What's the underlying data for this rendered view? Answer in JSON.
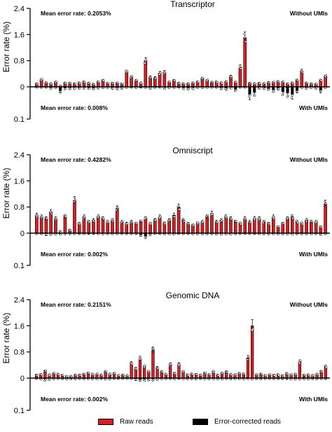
{
  "colors": {
    "raw": "#d31f26",
    "corrected": "#000000",
    "axis": "#000000",
    "point": "#ffffff"
  },
  "legend": {
    "raw_label": "Raw reads",
    "corrected_label": "Error-corrected reads"
  },
  "chart_data": [
    {
      "type": "bar",
      "title": "Transcriptor",
      "ylabel": "Error rate (%)",
      "yticks_top": [
        "2.4",
        "1.6",
        "0.8",
        "0"
      ],
      "ytick_bottom": "0.1",
      "ylim_top": [
        0,
        2.4
      ],
      "ylim_bottom": [
        0,
        0.1
      ],
      "grid": false,
      "annotations": {
        "mean_raw": "Mean error rate: 0.2053%",
        "without_umis": "Without UMIs",
        "mean_corrected": "Mean error rate: 0.008%",
        "with_umis": "With UMIs"
      },
      "series": [
        {
          "name": "Raw reads",
          "values": [
            0.1,
            0.22,
            0.13,
            0.1,
            0.15,
            0.02,
            0.12,
            0.12,
            0.1,
            0.12,
            0.15,
            0.12,
            0.08,
            0.15,
            0.2,
            0.1,
            0.12,
            0.12,
            0.1,
            0.45,
            0.3,
            0.2,
            0.12,
            0.8,
            0.3,
            0.28,
            0.42,
            0.45,
            0.15,
            0.2,
            0.12,
            0.1,
            0.1,
            0.12,
            0.15,
            0.25,
            0.2,
            0.14,
            0.15,
            0.12,
            0.16,
            0.32,
            0.15,
            0.6,
            1.5,
            0.12,
            0.1,
            0.12,
            0.1,
            0.14,
            0.14,
            0.16,
            0.15,
            0.1,
            0.12,
            0.2,
            0.48,
            0.12,
            0.1,
            0.08,
            0.2,
            0.32
          ]
        },
        {
          "name": "Error-corrected reads",
          "values": [
            0,
            0,
            0,
            0.003,
            0,
            0.012,
            0.004,
            0.004,
            0.003,
            0.003,
            0.003,
            0.003,
            0.005,
            0.003,
            0,
            0,
            0.004,
            0.004,
            0.003,
            0,
            0,
            0,
            0,
            0,
            0.003,
            0,
            0,
            0.003,
            0,
            0,
            0,
            0.003,
            0.004,
            0.003,
            0,
            0,
            0,
            0,
            0,
            0.004,
            0.006,
            0.002,
            0.008,
            0,
            0,
            0.025,
            0.018,
            0.003,
            0.004,
            0.006,
            0.01,
            0.006,
            0.016,
            0.02,
            0.024,
            0.012,
            0,
            0.003,
            0,
            0.003,
            0.012,
            0
          ]
        }
      ]
    },
    {
      "type": "bar",
      "title": "Omniscript",
      "ylabel": "Error rate (%)",
      "yticks_top": [
        "2.4",
        "1.6",
        "0.8",
        "0"
      ],
      "ytick_bottom": "0.1",
      "ylim_top": [
        0,
        2.4
      ],
      "ylim_bottom": [
        0,
        0.1
      ],
      "grid": false,
      "annotations": {
        "mean_raw": "Mean error rate: 0.4282%",
        "without_umis": "Without UMIs",
        "mean_corrected": "Mean error rate: 0.002%",
        "with_umis": "With UMIs"
      },
      "series": [
        {
          "name": "Raw reads",
          "values": [
            0.55,
            0.5,
            0.45,
            0.65,
            0.45,
            0.05,
            0.5,
            0.1,
            1.0,
            0.3,
            0.5,
            0.35,
            0.4,
            0.5,
            0.45,
            0.35,
            0.4,
            0.75,
            0.35,
            0.3,
            0.35,
            0.3,
            0.35,
            0.45,
            0.3,
            0.4,
            0.5,
            0.3,
            0.4,
            0.55,
            0.8,
            0.4,
            0.3,
            0.25,
            0.3,
            0.35,
            0.5,
            0.6,
            0.35,
            0.4,
            0.5,
            0.45,
            0.35,
            0.3,
            0.45,
            0.35,
            0.45,
            0.45,
            0.35,
            0.3,
            0.5,
            0.2,
            0.3,
            0.45,
            0.5,
            0.35,
            0.3,
            0.4,
            0.35,
            0.35,
            0.2,
            0.9
          ]
        },
        {
          "name": "Error-corrected reads",
          "values": [
            0,
            0,
            0.004,
            0.002,
            0,
            0,
            0,
            0,
            0,
            0,
            0,
            0,
            0,
            0,
            0,
            0,
            0,
            0,
            0,
            0,
            0,
            0,
            0.006,
            0.01,
            0.003,
            0,
            0,
            0,
            0,
            0,
            0,
            0,
            0,
            0,
            0,
            0,
            0,
            0,
            0,
            0,
            0,
            0,
            0,
            0,
            0,
            0,
            0,
            0,
            0,
            0,
            0,
            0,
            0,
            0,
            0,
            0,
            0,
            0,
            0,
            0,
            0.003,
            0
          ]
        }
      ]
    },
    {
      "type": "bar",
      "title": "Genomic DNA",
      "ylabel": "Error rate (%)",
      "yticks_top": [
        "2.4",
        "1.6",
        "0.8",
        "0"
      ],
      "ytick_bottom": "0.1",
      "ylim_top": [
        0,
        2.4
      ],
      "ylim_bottom": [
        0,
        0.1
      ],
      "grid": false,
      "annotations": {
        "mean_raw": "Mean error rate: 0.2151%",
        "without_umis": "Without UMIs",
        "mean_corrected": "Mean error rate: 0.002%",
        "with_umis": "With UMIs"
      },
      "series": [
        {
          "name": "Raw reads",
          "values": [
            0.1,
            0.12,
            0.22,
            0.1,
            0.15,
            0.12,
            0.08,
            0.05,
            0.05,
            0.1,
            0.1,
            0.12,
            0.15,
            0.12,
            0.12,
            0.1,
            0.2,
            0.12,
            0.15,
            0.08,
            0.1,
            0.08,
            0.45,
            0.3,
            0.6,
            0.35,
            0.2,
            0.85,
            0.32,
            0.2,
            0.12,
            0.42,
            0.15,
            0.42,
            0.2,
            0.1,
            0.12,
            0.12,
            0.1,
            0.15,
            0.1,
            0.2,
            0.1,
            0.15,
            0.2,
            0.12,
            0.1,
            0.14,
            0.12,
            0.62,
            1.6,
            0.1,
            0.12,
            0.08,
            0.1,
            0.1,
            0.1,
            0.08,
            0.14,
            0.1,
            0.12,
            0.5,
            0.1,
            0.1,
            0.08,
            0.12,
            0.2,
            0.35
          ]
        },
        {
          "name": "Error-corrected reads",
          "values": [
            0,
            0,
            0.004,
            0.002,
            0,
            0,
            0,
            0,
            0,
            0,
            0,
            0,
            0,
            0,
            0,
            0,
            0,
            0,
            0,
            0,
            0,
            0,
            0,
            0.004,
            0.006,
            0.004,
            0.004,
            0.004,
            0.002,
            0,
            0,
            0,
            0,
            0,
            0,
            0,
            0,
            0,
            0,
            0,
            0,
            0,
            0,
            0,
            0,
            0,
            0,
            0,
            0,
            0,
            0,
            0,
            0,
            0,
            0,
            0,
            0,
            0,
            0,
            0,
            0,
            0,
            0,
            0,
            0,
            0,
            0,
            0
          ]
        }
      ]
    }
  ]
}
